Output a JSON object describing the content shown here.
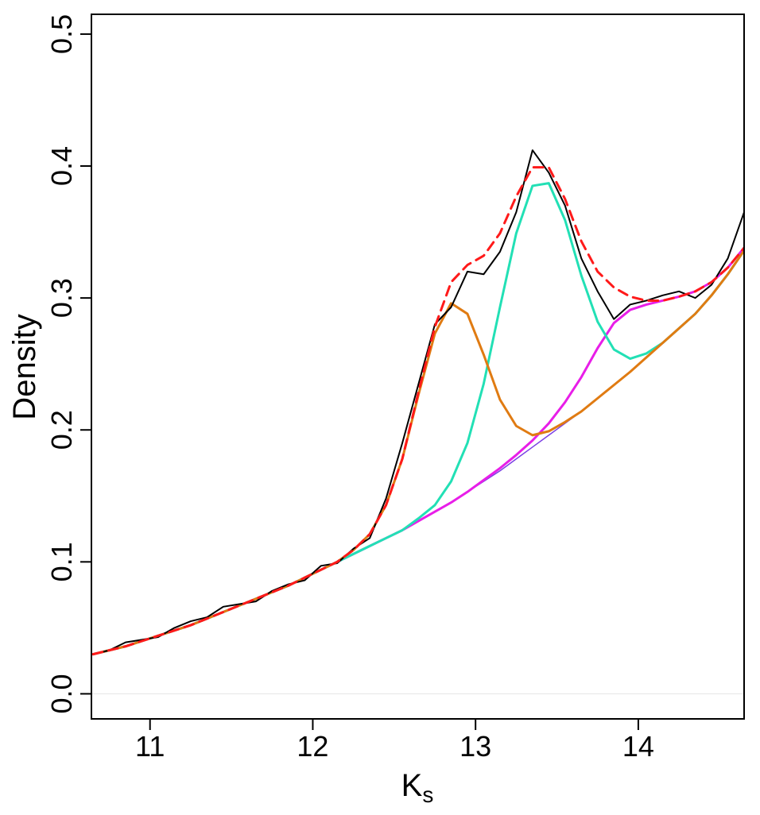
{
  "chart_data": {
    "type": "line",
    "xlabel": "K",
    "xlabel_subscript": "s",
    "ylabel": "Density",
    "xlim": [
      10.64,
      14.65
    ],
    "ylim": [
      -0.019,
      0.515
    ],
    "xticks": [
      11,
      12,
      13,
      14
    ],
    "yticks": [
      {
        "value": 0,
        "label": "0.0"
      },
      0.1,
      0.2,
      0.3,
      0.4,
      0.5
    ],
    "zero_line": true,
    "x": [
      10.65,
      10.75,
      10.85,
      10.95,
      11.05,
      11.15,
      11.25,
      11.35,
      11.45,
      11.55,
      11.65,
      11.75,
      11.85,
      11.95,
      12.05,
      12.15,
      12.25,
      12.35,
      12.45,
      12.55,
      12.65,
      12.75,
      12.85,
      12.95,
      13.05,
      13.15,
      13.25,
      13.35,
      13.45,
      13.55,
      13.65,
      13.75,
      13.85,
      13.95,
      14.05,
      14.15,
      14.25,
      14.35,
      14.45,
      14.55,
      14.65
    ],
    "series": [
      {
        "color": "#7b3fe4",
        "dashed": false,
        "values": [
          0.03,
          0.033,
          0.036,
          0.04,
          0.044,
          0.048,
          0.052,
          0.057,
          0.062,
          0.067,
          0.072,
          0.077,
          0.082,
          0.088,
          0.094,
          0.1,
          0.106,
          0.112,
          0.118,
          0.124,
          0.131,
          0.138,
          0.145,
          0.153,
          0.161,
          0.169,
          0.178,
          0.187,
          0.196,
          0.205,
          0.214,
          0.224,
          0.234,
          0.244,
          0.255,
          0.266,
          0.277,
          0.288,
          0.302,
          0.318,
          0.336
        ]
      },
      {
        "color": "#e81ee8",
        "dashed": false,
        "values": [
          0.03,
          0.033,
          0.036,
          0.04,
          0.044,
          0.048,
          0.052,
          0.057,
          0.062,
          0.067,
          0.072,
          0.077,
          0.082,
          0.088,
          0.094,
          0.1,
          0.106,
          0.112,
          0.118,
          0.124,
          0.131,
          0.138,
          0.145,
          0.153,
          0.162,
          0.171,
          0.181,
          0.192,
          0.205,
          0.221,
          0.24,
          0.262,
          0.281,
          0.291,
          0.295,
          0.298,
          0.301,
          0.305,
          0.312,
          0.323,
          0.338
        ]
      },
      {
        "color": "#22e0b5",
        "dashed": false,
        "values": [
          0.03,
          0.033,
          0.036,
          0.04,
          0.044,
          0.048,
          0.052,
          0.057,
          0.062,
          0.067,
          0.072,
          0.077,
          0.082,
          0.088,
          0.094,
          0.1,
          0.106,
          0.112,
          0.118,
          0.124,
          0.133,
          0.143,
          0.161,
          0.19,
          0.235,
          0.293,
          0.349,
          0.385,
          0.387,
          0.359,
          0.317,
          0.282,
          0.261,
          0.254,
          0.258,
          0.266,
          0.277,
          0.288,
          0.302,
          0.318,
          0.336
        ]
      },
      {
        "color": "#e07b12",
        "dashed": false,
        "values": [
          0.03,
          0.033,
          0.036,
          0.04,
          0.044,
          0.048,
          0.052,
          0.057,
          0.062,
          0.067,
          0.072,
          0.077,
          0.082,
          0.088,
          0.094,
          0.1,
          0.109,
          0.121,
          0.143,
          0.178,
          0.227,
          0.273,
          0.296,
          0.288,
          0.257,
          0.223,
          0.203,
          0.196,
          0.199,
          0.206,
          0.214,
          0.224,
          0.234,
          0.244,
          0.255,
          0.266,
          0.277,
          0.288,
          0.302,
          0.318,
          0.336
        ]
      },
      {
        "color": "#000000",
        "dashed": false,
        "values": [
          0.03,
          0.033,
          0.039,
          0.041,
          0.043,
          0.05,
          0.055,
          0.058,
          0.066,
          0.068,
          0.07,
          0.078,
          0.083,
          0.086,
          0.097,
          0.099,
          0.11,
          0.118,
          0.148,
          0.19,
          0.235,
          0.28,
          0.293,
          0.32,
          0.318,
          0.335,
          0.365,
          0.412,
          0.395,
          0.37,
          0.33,
          0.305,
          0.284,
          0.295,
          0.298,
          0.302,
          0.305,
          0.3,
          0.31,
          0.33,
          0.365
        ]
      },
      {
        "color": "#ff1a1a",
        "dashed": true,
        "values": [
          0.03,
          0.033,
          0.036,
          0.04,
          0.044,
          0.048,
          0.052,
          0.057,
          0.062,
          0.067,
          0.072,
          0.077,
          0.082,
          0.088,
          0.094,
          0.1,
          0.109,
          0.121,
          0.143,
          0.178,
          0.229,
          0.278,
          0.312,
          0.325,
          0.332,
          0.349,
          0.377,
          0.399,
          0.399,
          0.375,
          0.343,
          0.32,
          0.308,
          0.301,
          0.298,
          0.298,
          0.301,
          0.305,
          0.312,
          0.323,
          0.338
        ]
      }
    ]
  }
}
